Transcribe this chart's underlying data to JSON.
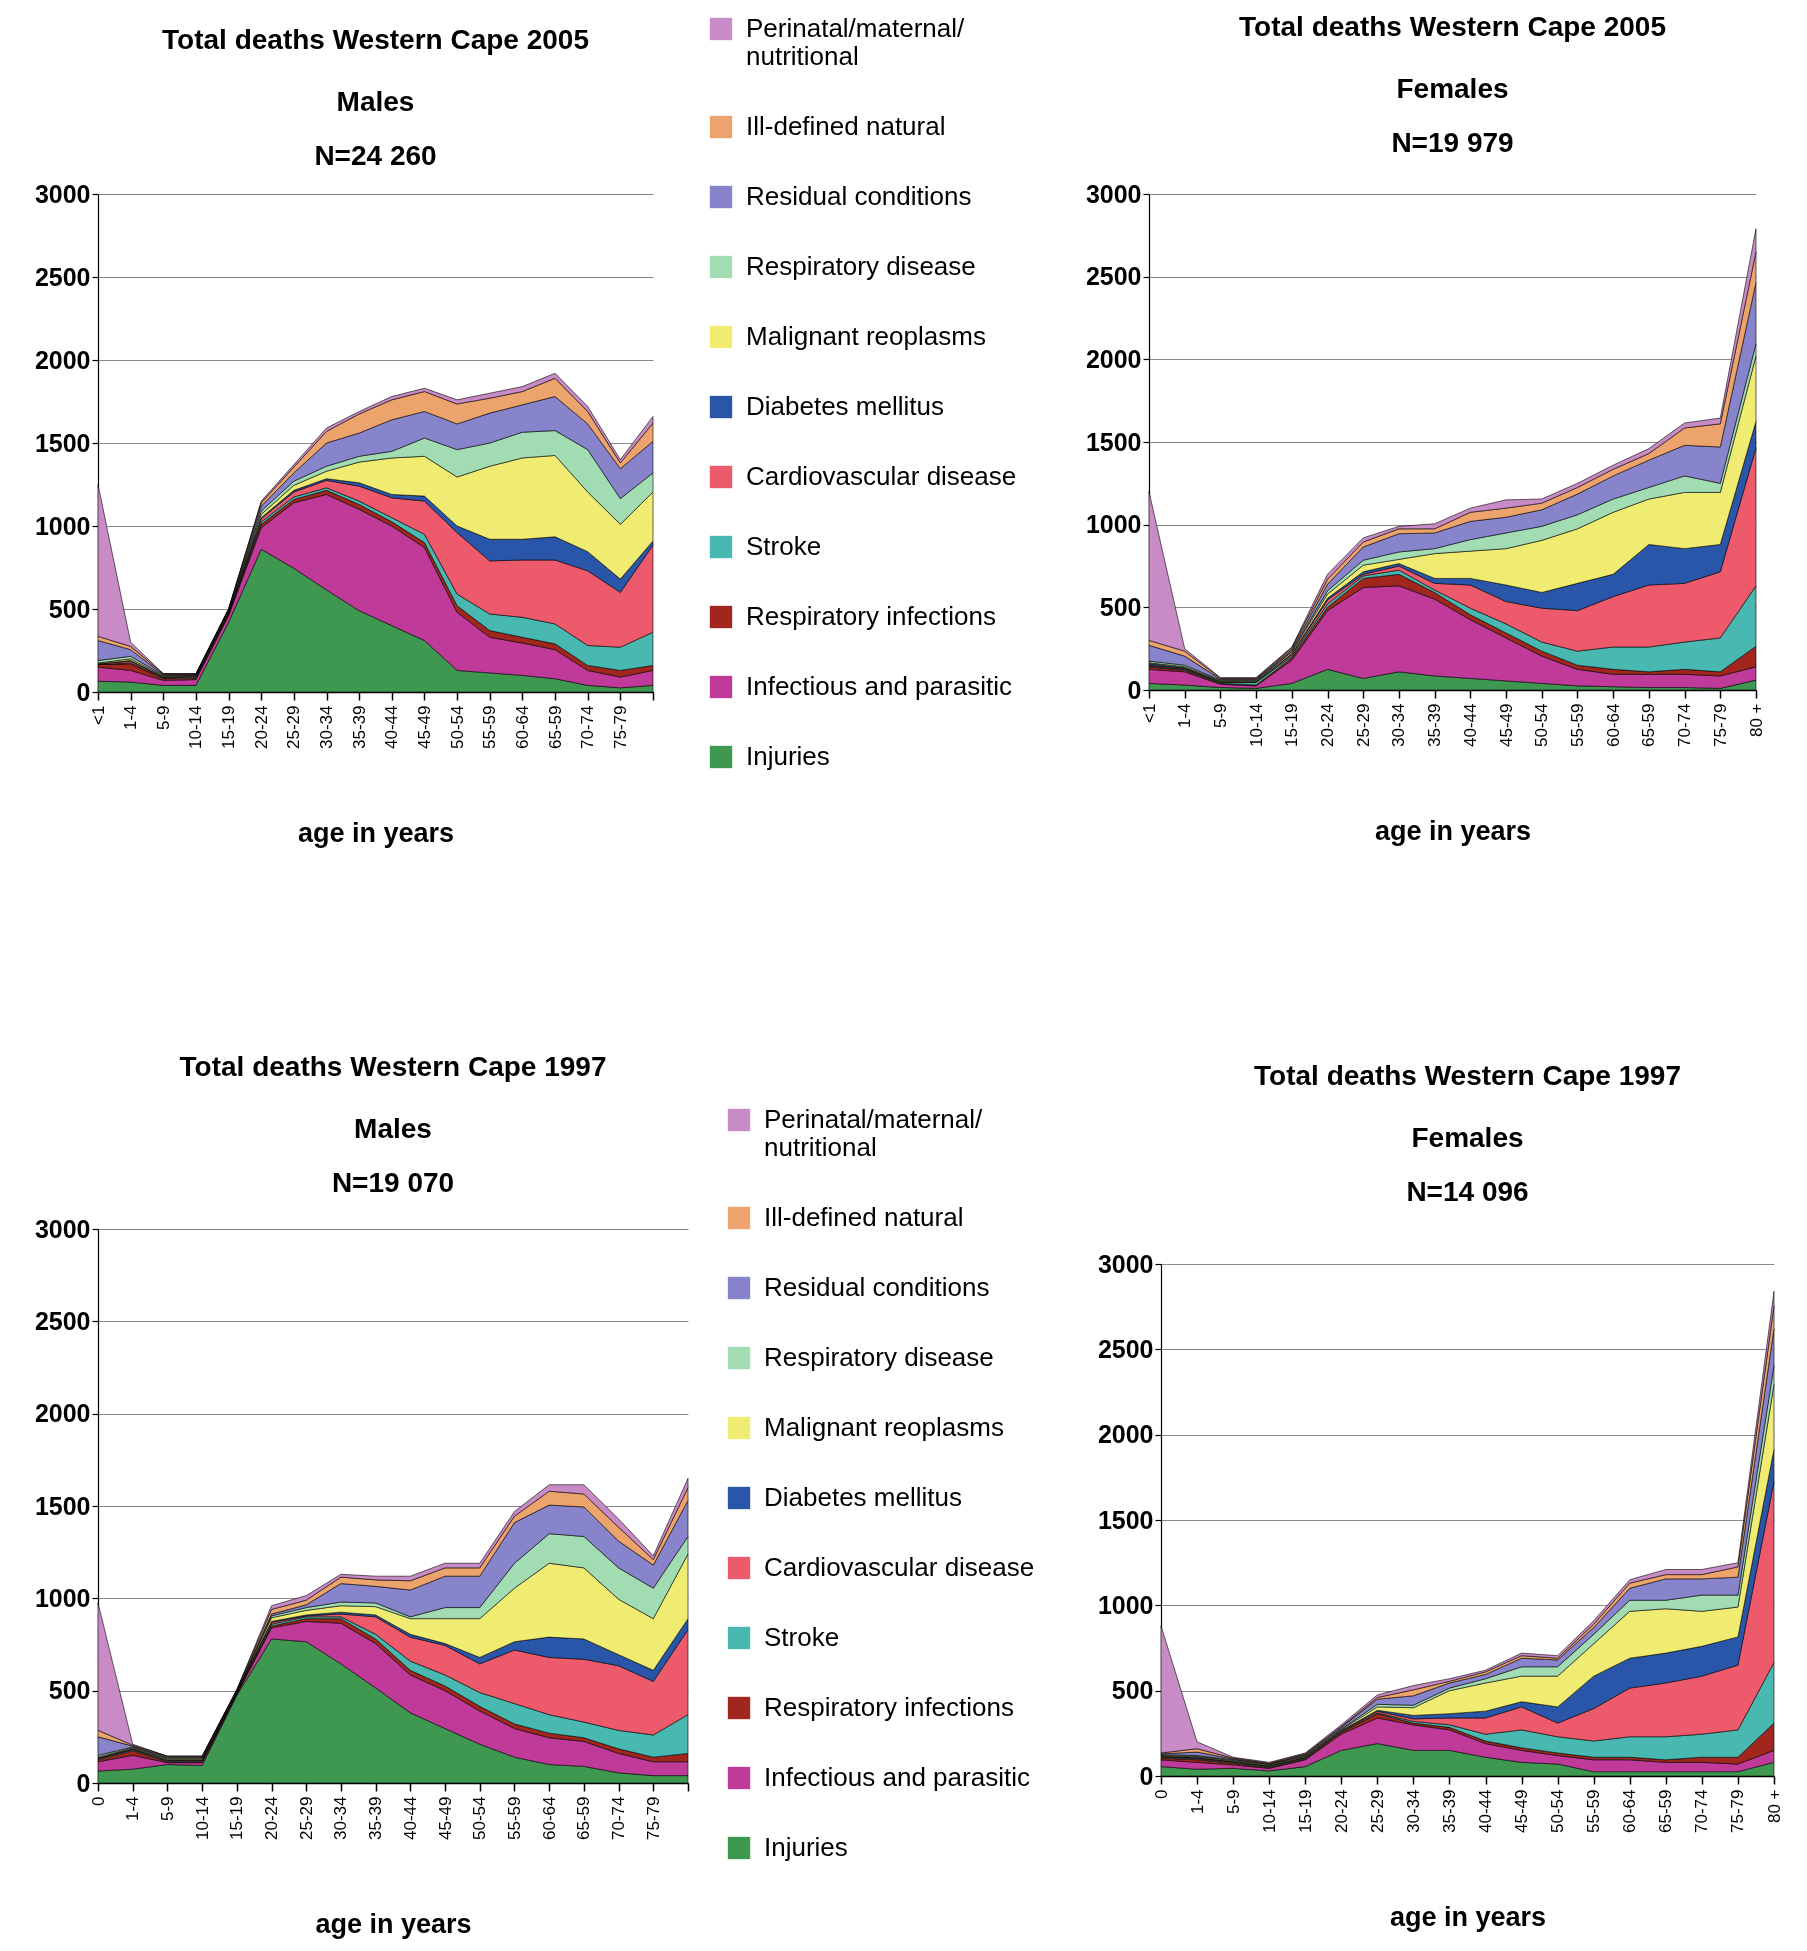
{
  "chart_data": [
    {
      "type": "area",
      "stacked": true,
      "title": "Total deaths Western Cape 2005",
      "subtitle": "Males\nN=24 260",
      "xlabel": "age in years",
      "categories": [
        "<1",
        "1-4",
        "5-9",
        "10-14",
        "15-19",
        "20-24",
        "25-29",
        "30-34",
        "35-39",
        "40-44",
        "45-49",
        "50-54",
        "55-59",
        "60-64",
        "65-59",
        "70-74",
        "75-79",
        null
      ],
      "ylim": [
        0,
        3000
      ],
      "yticks": [
        0,
        500,
        1000,
        1500,
        2000,
        2500,
        3000
      ],
      "grid": "y",
      "legend": "right",
      "series": [
        {
          "name": "Injuries",
          "color": "#3f9850",
          "values": [
            65,
            60,
            40,
            40,
            420,
            860,
            745,
            615,
            490,
            400,
            310,
            130,
            115,
            100,
            80,
            40,
            25,
            40
          ]
        },
        {
          "name": "Infectious and parasitic",
          "color": "#c03a9a",
          "values": [
            85,
            70,
            30,
            35,
            40,
            130,
            395,
            575,
            610,
            600,
            560,
            350,
            215,
            195,
            175,
            90,
            65,
            90
          ]
        },
        {
          "name": "Respiratory infections",
          "color": "#a0261e",
          "values": [
            15,
            40,
            10,
            10,
            10,
            20,
            20,
            25,
            30,
            25,
            30,
            40,
            40,
            35,
            35,
            30,
            40,
            30
          ]
        },
        {
          "name": "Stroke",
          "color": "#48b8b0",
          "values": [
            0,
            5,
            5,
            5,
            5,
            15,
            15,
            15,
            20,
            25,
            50,
            70,
            100,
            120,
            120,
            120,
            140,
            200
          ]
        },
        {
          "name": "Cardiovascular disease",
          "color": "#ec5a6c",
          "values": [
            5,
            10,
            5,
            5,
            5,
            20,
            30,
            45,
            90,
            120,
            200,
            370,
            320,
            345,
            385,
            450,
            330,
            525
          ]
        },
        {
          "name": "Diabetes mellitus",
          "color": "#2a56aa",
          "values": [
            0,
            5,
            0,
            0,
            0,
            5,
            10,
            10,
            20,
            20,
            30,
            40,
            130,
            125,
            140,
            115,
            80,
            25
          ]
        },
        {
          "name": "Malignant reoplasms",
          "color": "#f0ec72",
          "values": [
            5,
            10,
            5,
            5,
            5,
            20,
            30,
            45,
            125,
            220,
            240,
            295,
            440,
            490,
            490,
            360,
            330,
            295
          ]
        },
        {
          "name": "Respiratory disease",
          "color": "#a2dcb2",
          "values": [
            15,
            15,
            5,
            0,
            5,
            20,
            25,
            30,
            35,
            40,
            110,
            165,
            140,
            155,
            150,
            255,
            155,
            115
          ]
        },
        {
          "name": "Residual conditions",
          "color": "#8884cc",
          "values": [
            120,
            40,
            5,
            5,
            5,
            30,
            50,
            140,
            140,
            190,
            160,
            155,
            180,
            165,
            205,
            155,
            180,
            190
          ]
        },
        {
          "name": "Ill-defined natural",
          "color": "#eda46c",
          "values": [
            25,
            20,
            5,
            5,
            5,
            20,
            35,
            70,
            115,
            120,
            120,
            120,
            90,
            80,
            110,
            75,
            35,
            110
          ]
        },
        {
          "name": "Perinatal/maternal/ nutritional",
          "color": "#c98bc6",
          "values": [
            915,
            25,
            0,
            0,
            0,
            10,
            15,
            20,
            15,
            20,
            20,
            25,
            30,
            30,
            30,
            30,
            20,
            40
          ]
        }
      ]
    },
    {
      "type": "area",
      "stacked": true,
      "title": "Total deaths Western Cape 2005",
      "subtitle": "Females\nN=19 979",
      "xlabel": "age in years",
      "categories": [
        "<1",
        "1-4",
        "5-9",
        "10-14",
        "15-19",
        "20-24",
        "25-29",
        "30-34",
        "35-39",
        "40-44",
        "45-49",
        "50-54",
        "55-59",
        "60-64",
        "65-59",
        "70-74",
        "75-79",
        "80 +"
      ],
      "ylim": [
        0,
        3000
      ],
      "yticks": [
        0,
        500,
        1000,
        1500,
        2000,
        2500,
        3000
      ],
      "grid": "y",
      "series": [
        {
          "color": "#3f9850",
          "values": [
            40,
            30,
            15,
            10,
            40,
            125,
            70,
            110,
            85,
            70,
            55,
            40,
            25,
            20,
            15,
            15,
            10,
            60
          ]
        },
        {
          "color": "#c03a9a",
          "values": [
            85,
            80,
            20,
            15,
            140,
            355,
            550,
            520,
            465,
            355,
            260,
            165,
            100,
            75,
            80,
            80,
            75,
            80
          ]
        },
        {
          "color": "#a0261e",
          "values": [
            15,
            10,
            5,
            5,
            15,
            20,
            55,
            70,
            40,
            30,
            30,
            30,
            25,
            30,
            15,
            30,
            25,
            125
          ]
        },
        {
          "color": "#48b8b0",
          "values": [
            5,
            5,
            5,
            15,
            10,
            20,
            15,
            25,
            15,
            40,
            55,
            55,
            85,
            135,
            150,
            165,
            205,
            365
          ]
        },
        {
          "color": "#ec5a6c",
          "values": [
            5,
            5,
            5,
            5,
            10,
            25,
            10,
            25,
            40,
            140,
            135,
            205,
            245,
            305,
            375,
            355,
            400,
            835
          ]
        },
        {
          "color": "#2a56aa",
          "values": [
            10,
            5,
            0,
            0,
            5,
            10,
            15,
            15,
            30,
            40,
            100,
            95,
            165,
            135,
            245,
            210,
            165,
            160
          ]
        },
        {
          "color": "#f0ec72",
          "values": [
            5,
            5,
            5,
            5,
            10,
            25,
            40,
            25,
            150,
            165,
            220,
            315,
            330,
            375,
            275,
            340,
            315,
            395
          ]
        },
        {
          "color": "#a2dcb2",
          "values": [
            10,
            10,
            5,
            5,
            5,
            20,
            30,
            45,
            30,
            70,
            95,
            85,
            85,
            80,
            70,
            100,
            55,
            75
          ]
        },
        {
          "color": "#8884cc",
          "values": [
            95,
            55,
            5,
            5,
            10,
            40,
            80,
            110,
            95,
            110,
            95,
            100,
            125,
            140,
            165,
            185,
            220,
            370
          ]
        },
        {
          "color": "#eda46c",
          "values": [
            30,
            30,
            5,
            5,
            10,
            30,
            30,
            30,
            25,
            55,
            55,
            40,
            40,
            40,
            40,
            105,
            140,
            185
          ]
        },
        {
          "color": "#c98bc6",
          "values": [
            900,
            15,
            5,
            5,
            5,
            30,
            25,
            15,
            30,
            25,
            50,
            25,
            25,
            25,
            30,
            30,
            35,
            140
          ]
        }
      ]
    },
    {
      "type": "area",
      "stacked": true,
      "title": "Total deaths Western Cape 1997",
      "subtitle": "Males\nN=19 070",
      "xlabel": "age in years",
      "categories": [
        "0",
        "1-4",
        "5-9",
        "10-14",
        "15-19",
        "20-24",
        "25-29",
        "30-34",
        "35-39",
        "40-44",
        "45-49",
        "50-54",
        "55-59",
        "60-64",
        "65-59",
        "70-74",
        "75-79",
        null
      ],
      "ylim": [
        0,
        3000
      ],
      "yticks": [
        0,
        500,
        1000,
        1500,
        2000,
        2500,
        3000
      ],
      "grid": "y",
      "legend": "right",
      "series": [
        {
          "name": "Injuries",
          "color": "#3f9850",
          "values": [
            65,
            75,
            100,
            95,
            475,
            780,
            765,
            645,
            515,
            380,
            295,
            210,
            140,
            100,
            90,
            55,
            40,
            40
          ]
        },
        {
          "name": "Infectious and parasitic",
          "color": "#c03a9a",
          "values": [
            50,
            75,
            10,
            15,
            5,
            60,
            110,
            220,
            240,
            205,
            205,
            180,
            155,
            145,
            135,
            105,
            75,
            75
          ]
        },
        {
          "name": "Respiratory infections",
          "color": "#a0261e",
          "values": [
            10,
            25,
            5,
            5,
            5,
            10,
            15,
            25,
            25,
            25,
            25,
            25,
            25,
            25,
            20,
            25,
            25,
            45
          ]
        },
        {
          "name": "Stroke",
          "color": "#48b8b0",
          "values": [
            5,
            5,
            5,
            5,
            5,
            10,
            10,
            10,
            25,
            50,
            60,
            75,
            110,
            100,
            85,
            100,
            120,
            210
          ]
        },
        {
          "name": "Cardiovascular disease",
          "color": "#ec5a6c",
          "values": [
            5,
            5,
            5,
            5,
            5,
            10,
            5,
            15,
            95,
            130,
            160,
            155,
            290,
            310,
            340,
            350,
            290,
            460
          ]
        },
        {
          "name": "Diabetes mellitus",
          "color": "#2a56aa",
          "values": [
            0,
            0,
            0,
            0,
            0,
            5,
            5,
            10,
            10,
            15,
            10,
            35,
            45,
            110,
            110,
            60,
            60,
            60
          ]
        },
        {
          "name": "Malignant reoplasms",
          "color": "#f0ec72",
          "values": [
            5,
            5,
            5,
            5,
            0,
            20,
            25,
            35,
            45,
            85,
            135,
            210,
            290,
            400,
            385,
            300,
            280,
            350
          ]
        },
        {
          "name": "Respiratory disease",
          "color": "#a2dcb2",
          "values": [
            10,
            5,
            5,
            5,
            5,
            10,
            15,
            20,
            20,
            10,
            60,
            60,
            135,
            160,
            170,
            170,
            165,
            95
          ]
        },
        {
          "name": "Residual conditions",
          "color": "#8884cc",
          "values": [
            100,
            5,
            5,
            5,
            0,
            10,
            15,
            100,
            90,
            145,
            170,
            170,
            220,
            155,
            160,
            145,
            125,
            195
          ]
        },
        {
          "name": "Ill-defined natural",
          "color": "#eda46c",
          "values": [
            35,
            5,
            5,
            5,
            5,
            25,
            25,
            35,
            35,
            50,
            45,
            45,
            35,
            75,
            70,
            75,
            30,
            70
          ]
        },
        {
          "name": "Perinatal/maternal/ nutritional",
          "color": "#c98bc6",
          "values": [
            690,
            5,
            0,
            0,
            0,
            20,
            25,
            15,
            20,
            25,
            25,
            25,
            25,
            35,
            50,
            45,
            20,
            50
          ]
        }
      ]
    },
    {
      "type": "area",
      "stacked": true,
      "title": "Total deaths Western Cape 1997",
      "subtitle": "Females\nN=14 096",
      "xlabel": "age in years",
      "categories": [
        "0",
        "1-4",
        "5-9",
        "10-14",
        "15-19",
        "20-24",
        "25-29",
        "30-34",
        "35-39",
        "40-44",
        "45-49",
        "50-54",
        "55-59",
        "60-64",
        "65-59",
        "70-74",
        "75-79",
        "80 +"
      ],
      "ylim": [
        0,
        3000
      ],
      "yticks": [
        0,
        500,
        1000,
        1500,
        2000,
        2500,
        3000
      ],
      "grid": "y",
      "series": [
        {
          "color": "#3f9850",
          "values": [
            55,
            40,
            45,
            30,
            55,
            150,
            190,
            150,
            150,
            110,
            80,
            70,
            25,
            25,
            25,
            25,
            25,
            80
          ]
        },
        {
          "color": "#c03a9a",
          "values": [
            40,
            40,
            20,
            15,
            40,
            95,
            150,
            150,
            120,
            80,
            70,
            50,
            70,
            70,
            55,
            55,
            45,
            70
          ]
        },
        {
          "color": "#a0261e",
          "values": [
            10,
            15,
            10,
            5,
            5,
            10,
            25,
            10,
            15,
            15,
            15,
            15,
            15,
            15,
            15,
            30,
            40,
            160
          ]
        },
        {
          "color": "#48b8b0",
          "values": [
            5,
            5,
            5,
            5,
            5,
            5,
            5,
            10,
            15,
            40,
            105,
            95,
            95,
            120,
            135,
            135,
            160,
            355
          ]
        },
        {
          "color": "#ec5a6c",
          "values": [
            5,
            5,
            5,
            5,
            5,
            5,
            10,
            15,
            40,
            95,
            135,
            80,
            190,
            285,
            315,
            340,
            380,
            1060
          ]
        },
        {
          "color": "#2a56aa",
          "values": [
            0,
            5,
            0,
            0,
            0,
            0,
            5,
            20,
            25,
            40,
            30,
            95,
            190,
            175,
            175,
            175,
            165,
            190
          ]
        },
        {
          "color": "#f0ec72",
          "values": [
            5,
            5,
            5,
            5,
            5,
            5,
            20,
            45,
            135,
            165,
            150,
            180,
            190,
            275,
            260,
            205,
            175,
            380
          ]
        },
        {
          "color": "#a2dcb2",
          "values": [
            5,
            5,
            5,
            5,
            5,
            5,
            15,
            15,
            15,
            25,
            55,
            55,
            55,
            65,
            50,
            95,
            70,
            110
          ]
        },
        {
          "color": "#8884cc",
          "values": [
            5,
            20,
            5,
            0,
            5,
            10,
            30,
            55,
            30,
            25,
            50,
            40,
            40,
            70,
            125,
            95,
            105,
            215
          ]
        },
        {
          "color": "#eda46c",
          "values": [
            5,
            20,
            5,
            5,
            5,
            5,
            10,
            35,
            10,
            15,
            15,
            10,
            20,
            30,
            25,
            25,
            60,
            135
          ]
        },
        {
          "color": "#c98bc6",
          "values": [
            745,
            40,
            5,
            5,
            5,
            10,
            15,
            25,
            15,
            10,
            15,
            15,
            20,
            20,
            30,
            30,
            25,
            85
          ]
        }
      ]
    }
  ]
}
